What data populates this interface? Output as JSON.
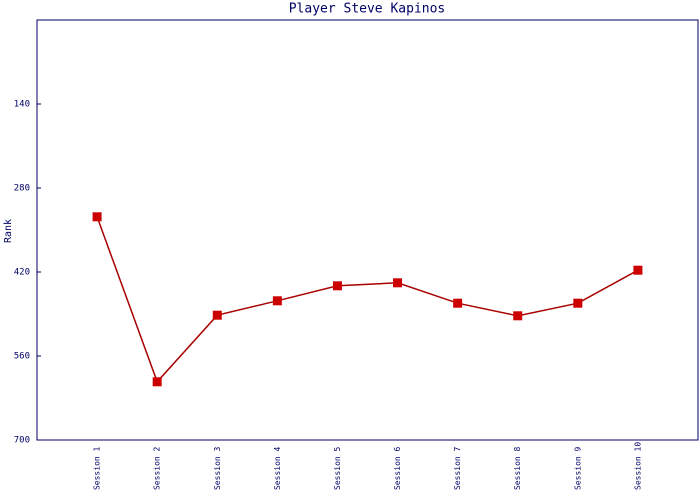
{
  "chart_data": {
    "type": "line",
    "title": "Player Steve Kapinos",
    "y_label": "Rank",
    "categories": [
      "Session 1",
      "Session 2",
      "Session 3",
      "Session 4",
      "Session 5",
      "Session 6",
      "Session 7",
      "Session 8",
      "Session 9",
      "Session 10"
    ],
    "series": [
      {
        "name": "Rank",
        "color": "#aa0000",
        "marker_color": "#cc0000",
        "values": [
          328,
          603,
          492,
          468,
          443,
          438,
          472,
          493,
          472,
          417
        ]
      }
    ],
    "ylim": [
      0,
      700
    ],
    "yticks": [
      140,
      280,
      420,
      560,
      700
    ],
    "y_inverted": true,
    "grid": false
  }
}
